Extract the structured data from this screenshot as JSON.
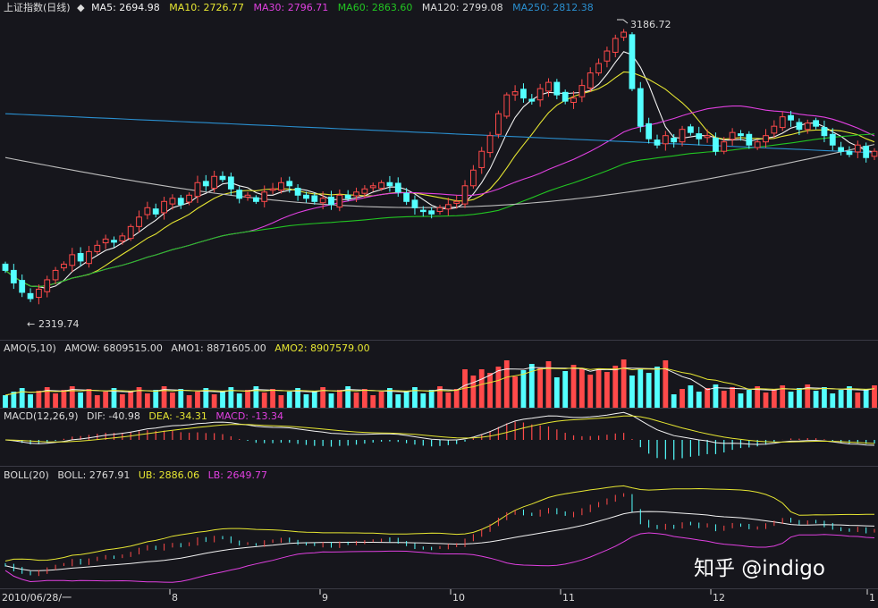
{
  "colors": {
    "up": "#ff4a4a",
    "down": "#54ffff",
    "ma5": "#f2f2f2",
    "ma10": "#e6e632",
    "ma30": "#e040e0",
    "ma60": "#22c522",
    "ma120": "#bdbdbd",
    "ma250": "#2a8fcf",
    "label": "#dcdcdc"
  },
  "header": {
    "title": "上证指数(日线)",
    "ma5": "MA5: 2694.98",
    "ma10": "MA10: 2726.77",
    "ma30": "MA30: 2796.71",
    "ma60": "MA60: 2863.60",
    "ma120": "MA120: 2799.08",
    "ma250": "MA250: 2812.38"
  },
  "amo_header": {
    "name": "AMO(5,10)",
    "amow": "AMOW: 6809515.00",
    "amo1": "AMO1: 8871605.00",
    "amo2": "AMO2: 8907579.00"
  },
  "macd_header": {
    "name": "MACD(12,26,9)",
    "dif": "DIF: -40.98",
    "dea": "DEA: -34.31",
    "macd": "MACD: -13.34"
  },
  "boll_header": {
    "name": "BOLL(20)",
    "boll": "BOLL: 2767.91",
    "ub": "UB: 2886.06",
    "lb": "LB: 2649.77"
  },
  "annotations": {
    "high": "3186.72",
    "low": "2319.74"
  },
  "x_axis": {
    "start": "2010/06/28/一",
    "ticks": [
      "8",
      "9",
      "10",
      "11",
      "12",
      "1"
    ]
  },
  "watermark": "知乎 @indigo",
  "chart_data": {
    "type": "candlestick",
    "title": "上证指数(日线)",
    "x": [
      "2010/06/28",
      "8",
      "9",
      "10",
      "11",
      "12",
      "1"
    ],
    "price_range": [
      2250,
      3220
    ],
    "high": 3186.72,
    "low": 2319.74,
    "ma_values": {
      "MA5": 2694.98,
      "MA10": 2726.77,
      "MA30": 2796.71,
      "MA60": 2863.6,
      "MA120": 2799.08,
      "MA250": 2812.38
    },
    "amo": {
      "AMOW": 6809515.0,
      "AMO1": 8871605.0,
      "AMO2": 8907579.0
    },
    "macd": {
      "DIF": -40.98,
      "DEA": -34.31,
      "MACD": -13.34
    },
    "boll": {
      "BOLL": 2767.91,
      "UB": 2886.06,
      "LB": 2649.77
    },
    "closes": [
      2420,
      2380,
      2350,
      2330,
      2360,
      2390,
      2420,
      2440,
      2470,
      2450,
      2480,
      2500,
      2520,
      2510,
      2530,
      2560,
      2590,
      2620,
      2600,
      2640,
      2650,
      2630,
      2660,
      2700,
      2690,
      2720,
      2710,
      2680,
      2650,
      2660,
      2640,
      2670,
      2680,
      2700,
      2690,
      2660,
      2650,
      2640,
      2650,
      2630,
      2660,
      2650,
      2670,
      2680,
      2690,
      2700,
      2690,
      2670,
      2640,
      2620,
      2610,
      2600,
      2620,
      2630,
      2640,
      2690,
      2740,
      2800,
      2850,
      2920,
      2980,
      2990,
      2970,
      2960,
      3000,
      3020,
      2980,
      2960,
      2970,
      3010,
      3050,
      3080,
      3120,
      3160,
      3180,
      3000,
      2880,
      2840,
      2820,
      2850,
      2830,
      2870,
      2860,
      2840,
      2850,
      2800,
      2830,
      2860,
      2850,
      2820,
      2830,
      2850,
      2880,
      2910,
      2900,
      2870,
      2890,
      2880,
      2850,
      2820,
      2800,
      2790,
      2820,
      2780,
      2800
    ]
  }
}
